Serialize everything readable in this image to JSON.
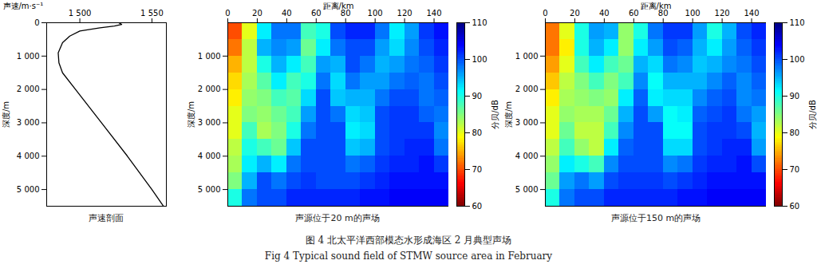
{
  "caption_cn": "图 4  北太平洋西部模态水形成海区 2 月典型声场",
  "caption_en": "Fig 4   Typical sound field of STMW source area in February",
  "chart_data": [
    {
      "type": "line",
      "title": "声速剖面",
      "x_label": "声速/m·s⁻¹",
      "y_label": "深度/m",
      "x": [
        1527,
        1529,
        1524,
        1514,
        1500,
        1493,
        1488,
        1485,
        1485.5,
        1488,
        1497,
        1515,
        1533,
        1550,
        1558
      ],
      "y": [
        0,
        50,
        100,
        150,
        250,
        400,
        600,
        900,
        1200,
        1500,
        2000,
        3000,
        4000,
        5000,
        5500
      ],
      "color": "#000000",
      "xlim": [
        1477,
        1560
      ],
      "xticks": [
        {
          "value": 1500,
          "label": "1 500"
        },
        {
          "value": 1550,
          "label": "1 550"
        }
      ],
      "ylim": [
        0,
        5500
      ],
      "yticks": [
        0,
        {
          "value": 1000,
          "label": "1 000"
        },
        {
          "value": 2000,
          "label": "2 000"
        },
        {
          "value": 3000,
          "label": "3 000"
        },
        {
          "value": 4000,
          "label": "4 000"
        },
        {
          "value": 5000,
          "label": "5 000"
        }
      ]
    },
    {
      "type": "heatmap",
      "title": "声源位于20 m的声场",
      "x_label": "距离/km",
      "y_label": "深度/m",
      "x_edges": [
        0,
        10,
        20,
        30,
        40,
        50,
        60,
        70,
        80,
        90,
        100,
        110,
        120,
        130,
        140,
        150
      ],
      "y_edges": [
        0,
        500,
        1000,
        1500,
        2000,
        2500,
        3000,
        3500,
        4000,
        4500,
        5000,
        5500
      ],
      "cells": [
        [
          70,
          72,
          75,
          77,
          78,
          80,
          80,
          82,
          83,
          85,
          90
        ],
        [
          80,
          82,
          82,
          83,
          84,
          85,
          88,
          90,
          92,
          95,
          98
        ],
        [
          92,
          95,
          90,
          87,
          85,
          84,
          83,
          88,
          95,
          100,
          100
        ],
        [
          98,
          97,
          95,
          92,
          88,
          86,
          85,
          86,
          92,
          98,
          100
        ],
        [
          98,
          96,
          92,
          88,
          87,
          88,
          90,
          94,
          98,
          100,
          102
        ],
        [
          88,
          86,
          88,
          90,
          93,
          96,
          98,
          100,
          100,
          101,
          102
        ],
        [
          90,
          92,
          96,
          98,
          100,
          100,
          100,
          100,
          100,
          100,
          102
        ],
        [
          100,
          98,
          95,
          93,
          94,
          98,
          100,
          100,
          100,
          100,
          102
        ],
        [
          102,
          100,
          100,
          98,
          95,
          93,
          92,
          94,
          98,
          100,
          102
        ],
        [
          102,
          100,
          98,
          96,
          95,
          94,
          93,
          95,
          99,
          101,
          103
        ],
        [
          98,
          96,
          95,
          96,
          98,
          100,
          100,
          100,
          101,
          102,
          103
        ],
        [
          92,
          93,
          96,
          98,
          100,
          101,
          101,
          101,
          102,
          103,
          104
        ],
        [
          96,
          97,
          98,
          99,
          100,
          101,
          101,
          102,
          102,
          103,
          104
        ],
        [
          101,
          100,
          99,
          98,
          98,
          99,
          101,
          102,
          103,
          103,
          104
        ],
        [
          103,
          102,
          101,
          100,
          99,
          98,
          97,
          98,
          101,
          103,
          104
        ]
      ],
      "xlim": [
        0,
        150
      ],
      "xticks": [
        0,
        20,
        40,
        60,
        80,
        100,
        120,
        140
      ],
      "ylim": [
        0,
        5500
      ],
      "yticks": [
        {
          "value": 1000,
          "label": "1 000"
        },
        {
          "value": 2000,
          "label": "2 000"
        },
        {
          "value": 3000,
          "label": "3 000"
        },
        {
          "value": 4000,
          "label": "4 000"
        },
        {
          "value": 5000,
          "label": "5 000"
        }
      ],
      "colorbar": {
        "range": [
          60,
          110
        ],
        "ticks": [
          60,
          70,
          80,
          90,
          100,
          110
        ],
        "label": "分贝/dB"
      }
    },
    {
      "type": "heatmap",
      "title": "声源位于150 m的声场",
      "x_label": "距离/km",
      "y_label": "深度/m",
      "x_edges": [
        0,
        10,
        20,
        30,
        40,
        50,
        60,
        70,
        80,
        90,
        100,
        110,
        120,
        130,
        140,
        150
      ],
      "y_edges": [
        0,
        500,
        1000,
        1500,
        2000,
        2500,
        3000,
        3500,
        4000,
        4500,
        5000,
        5500
      ],
      "cells": [
        [
          72,
          72,
          74,
          76,
          78,
          80,
          80,
          82,
          84,
          86,
          90
        ],
        [
          80,
          78,
          80,
          82,
          83,
          84,
          86,
          88,
          92,
          96,
          98
        ],
        [
          90,
          90,
          88,
          85,
          84,
          83,
          82,
          84,
          90,
          98,
          100
        ],
        [
          96,
          95,
          92,
          88,
          85,
          83,
          82,
          82,
          88,
          96,
          100
        ],
        [
          95,
          92,
          88,
          85,
          84,
          86,
          88,
          92,
          97,
          100,
          102
        ],
        [
          84,
          84,
          86,
          88,
          92,
          95,
          97,
          99,
          100,
          101,
          102
        ],
        [
          90,
          92,
          95,
          97,
          99,
          100,
          100,
          100,
          100,
          101,
          102
        ],
        [
          98,
          96,
          93,
          91,
          92,
          96,
          100,
          100,
          100,
          101,
          102
        ],
        [
          101,
          100,
          98,
          95,
          93,
          91,
          91,
          93,
          97,
          100,
          102
        ],
        [
          101,
          99,
          97,
          95,
          93,
          92,
          91,
          93,
          98,
          101,
          103
        ],
        [
          96,
          95,
          94,
          95,
          97,
          99,
          100,
          100,
          101,
          102,
          103
        ],
        [
          90,
          92,
          95,
          97,
          99,
          100,
          101,
          101,
          102,
          103,
          104
        ],
        [
          95,
          96,
          97,
          99,
          100,
          101,
          101,
          102,
          102,
          103,
          104
        ],
        [
          100,
          99,
          98,
          97,
          97,
          98,
          100,
          102,
          103,
          103,
          104
        ],
        [
          102,
          101,
          100,
          99,
          98,
          96,
          95,
          96,
          100,
          103,
          104
        ]
      ],
      "xlim": [
        0,
        150
      ],
      "xticks": [
        0,
        20,
        40,
        60,
        80,
        100,
        120,
        140
      ],
      "ylim": [
        0,
        5500
      ],
      "yticks": [
        {
          "value": 1000,
          "label": "1 000"
        },
        {
          "value": 2000,
          "label": "2 000"
        },
        {
          "value": 3000,
          "label": "3 000"
        },
        {
          "value": 4000,
          "label": "4 000"
        },
        {
          "value": 5000,
          "label": "5 000"
        }
      ],
      "colorbar": {
        "range": [
          60,
          110
        ],
        "ticks": [
          60,
          70,
          80,
          90,
          100,
          110
        ],
        "label": "分贝/dB"
      }
    }
  ]
}
